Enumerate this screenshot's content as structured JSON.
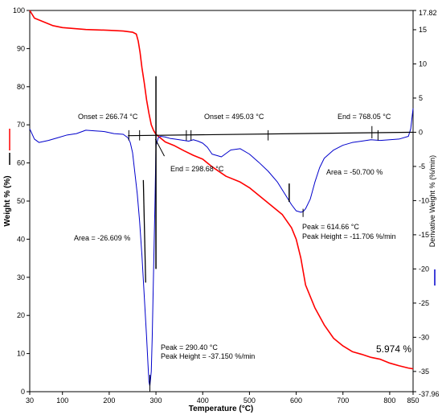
{
  "chart_data": {
    "type": "line",
    "xlabel": "Temperature (°C)",
    "ylabel": "Weight % (%)",
    "y2label": "Derivative Weight % (%/min)",
    "xlim": [
      30,
      850
    ],
    "ylim": [
      0,
      100
    ],
    "y2lim": [
      -37.96,
      17.82
    ],
    "x_ticks": [
      30,
      100,
      200,
      300,
      400,
      500,
      600,
      700,
      800,
      850
    ],
    "y_ticks": [
      0,
      10,
      20,
      30,
      40,
      50,
      60,
      70,
      80,
      90,
      100
    ],
    "y2_ticks": [
      17.82,
      15,
      10,
      5,
      0,
      -5,
      -10,
      -15,
      -20,
      -25,
      -30,
      -35,
      -37.96
    ],
    "y2_top_label": "17.82",
    "y2_bottom_label": "-37.96",
    "series": [
      {
        "axis": "left",
        "color": "#ff0000",
        "x": [
          30,
          40,
          60,
          80,
          100,
          150,
          200,
          230,
          250,
          258,
          262,
          266,
          270,
          275,
          280,
          285,
          290,
          295,
          300,
          310,
          320,
          340,
          360,
          380,
          400,
          420,
          450,
          480,
          500,
          520,
          550,
          570,
          590,
          600,
          610,
          620,
          640,
          660,
          680,
          700,
          720,
          740,
          760,
          780,
          800,
          820,
          840,
          850
        ],
        "values": [
          100,
          98,
          97,
          96,
          95.5,
          95,
          94.8,
          94.6,
          94.3,
          93.8,
          92,
          89,
          85,
          81,
          76.5,
          73,
          70,
          68.5,
          67.5,
          66.5,
          65.5,
          64.5,
          63.2,
          62,
          61,
          59,
          56.5,
          55,
          53.5,
          51.5,
          48.5,
          46.5,
          43,
          40,
          35,
          28,
          22,
          17.5,
          14,
          12,
          10.5,
          9.8,
          9,
          8.5,
          7.5,
          6.8,
          6.2,
          6
        ]
      },
      {
        "axis": "right",
        "color": "#0000cc",
        "x": [
          30,
          40,
          50,
          70,
          90,
          110,
          130,
          150,
          170,
          190,
          210,
          230,
          240,
          245,
          250,
          255,
          260,
          265,
          270,
          275,
          280,
          283,
          285,
          287,
          290,
          292,
          295,
          298,
          300,
          305,
          310,
          320,
          330,
          340,
          350,
          360,
          370,
          380,
          390,
          400,
          410,
          420,
          440,
          460,
          480,
          500,
          520,
          540,
          560,
          580,
          590,
          600,
          610,
          615,
          620,
          630,
          640,
          650,
          660,
          680,
          700,
          720,
          740,
          760,
          780,
          800,
          820,
          840,
          845,
          850
        ],
        "values": [
          0.5,
          -1,
          -1.5,
          -1.2,
          -0.8,
          -0.4,
          -0.2,
          0.3,
          0.2,
          0.1,
          -0.2,
          -0.3,
          -0.8,
          -1.5,
          -3,
          -6,
          -9,
          -13,
          -18,
          -24,
          -30,
          -34,
          -36.5,
          -37.15,
          -35,
          -30,
          -20,
          -10,
          -2,
          -0.8,
          -0.6,
          -0.7,
          -0.9,
          -1,
          -1.1,
          -1.2,
          -1.3,
          -1.1,
          -1.3,
          -1.6,
          -2.2,
          -3.2,
          -3.6,
          -2.6,
          -2.4,
          -3.2,
          -4.4,
          -5.7,
          -7.3,
          -9.5,
          -10.6,
          -11.5,
          -11.706,
          -11.6,
          -11.2,
          -9.8,
          -7.3,
          -5.2,
          -3.8,
          -2.6,
          -1.9,
          -1.5,
          -1.3,
          -1.1,
          -1.2,
          -1.1,
          -1,
          -0.6,
          0.5,
          3.5
        ]
      }
    ],
    "baseline": {
      "x": [
        240,
        850
      ],
      "values": [
        -0.5,
        0
      ]
    },
    "annotations": [
      {
        "id": "onset1",
        "text": "Onset = 266.74 °C"
      },
      {
        "id": "end1",
        "text": "End = 298.68 °C"
      },
      {
        "id": "onset2",
        "text": "Onset = 495.03 °C"
      },
      {
        "id": "end2",
        "text": "End = 768.05 °C"
      },
      {
        "id": "area1",
        "text": "Area = -26.609 %"
      },
      {
        "id": "area2",
        "text": "Area = -50.700 %"
      },
      {
        "id": "peak1",
        "text": "Peak = 290.40 °C"
      },
      {
        "id": "peakh1",
        "text": "Peak Height = -37.150 %/min"
      },
      {
        "id": "peak2",
        "text": "Peak = 614.66 °C"
      },
      {
        "id": "peakh2",
        "text": "Peak Height = -11.706 %/min"
      },
      {
        "id": "residue",
        "text": "5.974 %"
      }
    ]
  }
}
